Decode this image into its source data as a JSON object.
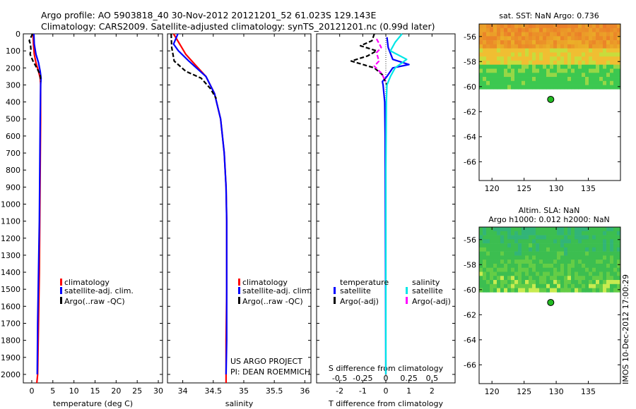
{
  "title": {
    "line1": "Argo profile: AO 5903818_40 30-Nov-2012 20121201_52 61.023S 129.143E",
    "line2": "Climatology: CARS2009. Satellite-adjusted climatology: synTS_20121201.nc (0.99d later)"
  },
  "colors": {
    "climatology": "#ff0000",
    "satellite": "#0000ff",
    "argo": "#000000",
    "sal_satellite": "#00e6e6",
    "sal_argo": "#ff00ff"
  },
  "legend": {
    "climatology": "climatology",
    "satellite": "satellite-adj. clim.",
    "argo": "Argo(..raw -QC)"
  },
  "diff_legend": {
    "temp_header": "temperature",
    "sal_header": "salinity",
    "satellite": "satellite",
    "argo": "Argo(-adj)"
  },
  "project": {
    "line1": "US ARGO PROJECT",
    "line2": "PI: DEAN ROEMMICH"
  },
  "map_sst": {
    "title": "sat. SST: NaN Argo: 0.736"
  },
  "map_sla": {
    "title1": "Altim. SLA: NaN",
    "title2": "Argo h1000: 0.012 h2000: NaN"
  },
  "footer": "IMOS 10-Dec-2012 17:00:29",
  "chart_data": [
    {
      "type": "line",
      "name": "temperature_panel",
      "xlabel": "temperature (deg C)",
      "xlim": [
        -2,
        31
      ],
      "xticks": [
        0,
        5,
        10,
        15,
        20,
        25,
        30
      ],
      "ylim": [
        2050,
        0
      ],
      "yticks": [
        0,
        100,
        200,
        300,
        400,
        500,
        600,
        700,
        800,
        900,
        1000,
        1100,
        1200,
        1300,
        1400,
        1500,
        1600,
        1700,
        1800,
        1900,
        2000
      ],
      "series": [
        {
          "name": "climatology",
          "x": [
            0.3,
            0.4,
            0.6,
            1.0,
            1.6,
            2.0,
            2.1,
            2.1,
            2.0,
            1.9,
            1.8,
            1.6,
            1.4,
            1.2
          ],
          "y": [
            0,
            60,
            120,
            170,
            220,
            260,
            300,
            500,
            800,
            1100,
            1400,
            1700,
            2000,
            2050
          ]
        },
        {
          "name": "satellite-adj. clim.",
          "x": [
            0.5,
            0.6,
            1.0,
            1.6,
            2.0,
            2.2,
            2.1,
            2.0,
            1.9,
            1.8,
            1.6,
            1.4,
            1.3
          ],
          "y": [
            0,
            60,
            120,
            170,
            220,
            260,
            300,
            500,
            800,
            1100,
            1400,
            1700,
            2000
          ]
        },
        {
          "name": "Argo(..raw -QC)",
          "x": [
            0.2,
            -0.6,
            -0.3,
            -0.2,
            -0.4,
            0.3,
            1.2,
            2.0,
            2.1
          ],
          "y": [
            0,
            40,
            60,
            90,
            120,
            160,
            200,
            240,
            280
          ]
        }
      ]
    },
    {
      "type": "line",
      "name": "salinity_panel",
      "xlabel": "salinity",
      "xlim": [
        33.75,
        36.1
      ],
      "xticks": [
        34,
        34.5,
        35,
        35.5,
        36
      ],
      "ylim": [
        2050,
        0
      ],
      "series": [
        {
          "name": "climatology",
          "x": [
            33.85,
            33.95,
            34.05,
            34.2,
            34.38,
            34.52,
            34.62,
            34.68,
            34.71,
            34.72,
            34.72,
            34.71,
            34.71
          ],
          "y": [
            0,
            60,
            120,
            180,
            250,
            350,
            500,
            700,
            900,
            1100,
            1500,
            1800,
            2050
          ]
        },
        {
          "name": "satellite-adj. clim.",
          "x": [
            33.92,
            33.85,
            33.93,
            34.1,
            34.38,
            34.52,
            34.62,
            34.68,
            34.71,
            34.72,
            34.72,
            34.72,
            34.71
          ],
          "y": [
            0,
            60,
            100,
            160,
            250,
            350,
            500,
            700,
            900,
            1100,
            1500,
            1800,
            2000
          ]
        },
        {
          "name": "Argo(..raw -QC)",
          "x": [
            33.81,
            33.82,
            33.86,
            34.05,
            34.3,
            34.45,
            34.55
          ],
          "y": [
            0,
            80,
            160,
            220,
            260,
            320,
            380
          ]
        }
      ]
    },
    {
      "type": "line",
      "name": "difference_panel",
      "xlabel": "T difference from climatology",
      "xlabel_top": "S difference from climatology",
      "xlim": [
        -3,
        3
      ],
      "xticks": [
        -2,
        -1,
        0,
        1,
        2
      ],
      "xticks_top": [
        -0.5,
        -0.25,
        0,
        0.25,
        0.5
      ],
      "ylim": [
        2050,
        0
      ],
      "series": [
        {
          "name": "temperature satellite",
          "x": [
            0.05,
            0.1,
            0.3,
            1.0,
            0.3,
            0.05,
            -0.15,
            -0.12,
            -0.05,
            -0.03,
            -0.02,
            -0.01,
            0
          ],
          "y": [
            20,
            80,
            150,
            180,
            200,
            250,
            280,
            300,
            400,
            600,
            1000,
            1500,
            2000
          ]
        },
        {
          "name": "temperature Argo(-adj)",
          "x": [
            -0.5,
            -0.6,
            -1.1,
            -0.4,
            -0.8,
            -1.5,
            -0.5,
            -0.15,
            0.05
          ],
          "y": [
            0,
            40,
            70,
            100,
            130,
            160,
            200,
            240,
            300
          ]
        },
        {
          "name": "salinity satellite",
          "x": [
            0.7,
            0.4,
            0.2,
            0.9,
            0.4,
            0.2,
            0.05,
            0.02,
            0,
            0,
            0
          ],
          "y": [
            0,
            50,
            100,
            150,
            200,
            250,
            300,
            400,
            800,
            1400,
            2000
          ]
        },
        {
          "name": "salinity Argo(-adj)",
          "x": [
            -0.4,
            -0.2,
            -0.4,
            -0.3,
            -0.5,
            -0.2,
            0
          ],
          "y": [
            30,
            80,
            110,
            160,
            190,
            230,
            280
          ]
        }
      ]
    },
    {
      "type": "heatmap",
      "name": "sst_map",
      "xlim": [
        118,
        140
      ],
      "ylim": [
        -67.5,
        -55
      ],
      "xticks": [
        120,
        125,
        130,
        135
      ],
      "yticks": [
        -56,
        -58,
        -60,
        -62,
        -64,
        -66
      ],
      "argo_position": {
        "lon": 129.143,
        "lat": -61.023
      }
    },
    {
      "type": "heatmap",
      "name": "sla_map",
      "xlim": [
        118,
        140
      ],
      "ylim": [
        -67.5,
        -55
      ],
      "xticks": [
        120,
        125,
        130,
        135
      ],
      "yticks": [
        -56,
        -58,
        -60,
        -62,
        -64,
        -66
      ],
      "argo_position": {
        "lon": 129.143,
        "lat": -61.023
      }
    }
  ]
}
